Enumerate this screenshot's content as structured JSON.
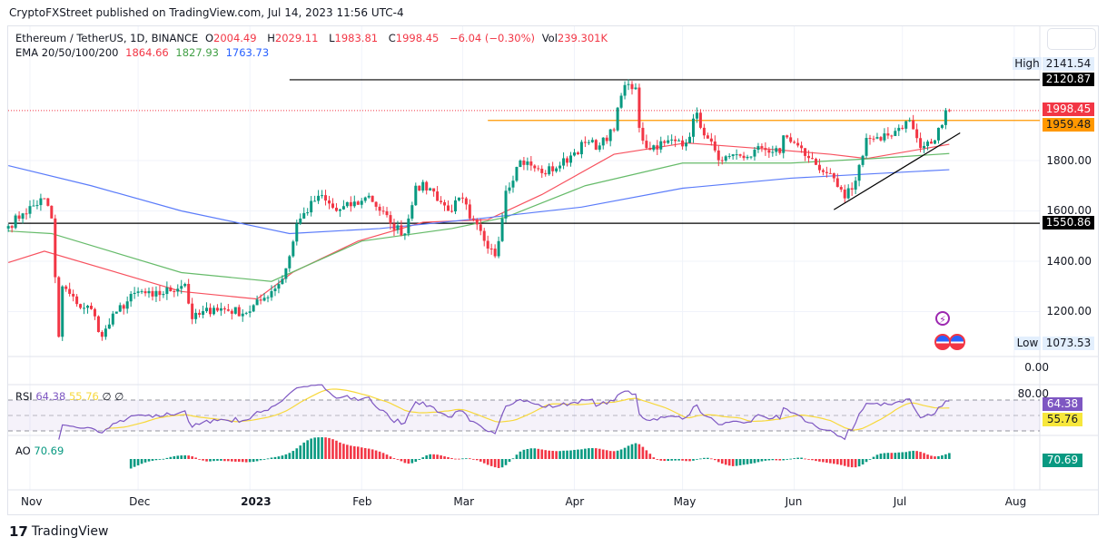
{
  "publisher_line": "CryptoFXStreet published on TradingView.com, Jul 14, 2023 11:56 UTC-4",
  "symbol": {
    "name": "Ethereum / TetherUS, 1D, BINANCE",
    "open_label": "O",
    "open": "2004.49",
    "high_label": "H",
    "high": "2029.11",
    "low_label": "L",
    "low": "1983.81",
    "close_label": "C",
    "close": "1998.45",
    "change": "−6.04 (−0.30%)",
    "vol_label": "Vol",
    "vol": "239.301K"
  },
  "ema_legend": {
    "label": "EMA 20/50/100/200",
    "v1": "1864.66",
    "v2": "1827.93",
    "v3": "1763.73"
  },
  "rsi_legend": {
    "label": "RSI",
    "v1": "64.38",
    "v2": "55.76",
    "v3": "∅",
    "v4": "∅"
  },
  "ao_legend": {
    "label": "AO",
    "v1": "70.69"
  },
  "footer": {
    "brand": "TradingView"
  },
  "colors": {
    "up": "#089981",
    "down": "#f23645",
    "ema_red": "#f7525f",
    "ema_green": "#66bb6a",
    "ema_blue": "#5b7cfa",
    "rsi": "#7e57c2",
    "rsi_ma": "#f7d83b",
    "orange": "#ff9800"
  },
  "chart_data": {
    "type": "candlestick",
    "price_axis": {
      "ticks": [
        "1800.00",
        "1600.00",
        "1400.00",
        "1200.00"
      ],
      "ylim": [
        1050,
        2160
      ]
    },
    "x_ticks": [
      {
        "label": "Nov",
        "date": "2022-11-01"
      },
      {
        "label": "Dec",
        "date": "2022-12-01"
      },
      {
        "label": "2023",
        "date": "2023-01-01"
      },
      {
        "label": "Feb",
        "date": "2023-02-01"
      },
      {
        "label": "Mar",
        "date": "2023-03-01"
      },
      {
        "label": "Apr",
        "date": "2023-04-01"
      },
      {
        "label": "May",
        "date": "2023-05-01"
      },
      {
        "label": "Jun",
        "date": "2023-06-01"
      },
      {
        "label": "Jul",
        "date": "2023-07-01"
      },
      {
        "label": "Aug",
        "date": "2023-08-01"
      }
    ],
    "close_path": [
      [
        "2022-10-26",
        1540
      ],
      [
        "2022-10-30",
        1590
      ],
      [
        "2022-11-05",
        1650
      ],
      [
        "2022-11-07",
        1570
      ],
      [
        "2022-11-09",
        1100
      ],
      [
        "2022-11-10",
        1300
      ],
      [
        "2022-11-14",
        1230
      ],
      [
        "2022-11-18",
        1210
      ],
      [
        "2022-11-21",
        1100
      ],
      [
        "2022-11-25",
        1200
      ],
      [
        "2022-12-01",
        1280
      ],
      [
        "2022-12-05",
        1260
      ],
      [
        "2022-12-14",
        1310
      ],
      [
        "2022-12-16",
        1170
      ],
      [
        "2022-12-22",
        1215
      ],
      [
        "2022-12-31",
        1195
      ],
      [
        "2023-01-05",
        1255
      ],
      [
        "2023-01-10",
        1330
      ],
      [
        "2023-01-12",
        1420
      ],
      [
        "2023-01-14",
        1550
      ],
      [
        "2023-01-20",
        1660
      ],
      [
        "2023-01-25",
        1600
      ],
      [
        "2023-02-01",
        1640
      ],
      [
        "2023-02-03",
        1660
      ],
      [
        "2023-02-09",
        1550
      ],
      [
        "2023-02-13",
        1510
      ],
      [
        "2023-02-16",
        1700
      ],
      [
        "2023-02-20",
        1690
      ],
      [
        "2023-02-25",
        1600
      ],
      [
        "2023-03-01",
        1650
      ],
      [
        "2023-03-03",
        1570
      ],
      [
        "2023-03-09",
        1450
      ],
      [
        "2023-03-10",
        1420
      ],
      [
        "2023-03-11",
        1480
      ],
      [
        "2023-03-13",
        1680
      ],
      [
        "2023-03-17",
        1800
      ],
      [
        "2023-03-20",
        1780
      ],
      [
        "2023-03-23",
        1750
      ],
      [
        "2023-03-28",
        1780
      ],
      [
        "2023-03-31",
        1820
      ],
      [
        "2023-04-04",
        1870
      ],
      [
        "2023-04-08",
        1860
      ],
      [
        "2023-04-12",
        1920
      ],
      [
        "2023-04-13",
        2010
      ],
      [
        "2023-04-15",
        2100
      ],
      [
        "2023-04-18",
        2090
      ],
      [
        "2023-04-19",
        1930
      ],
      [
        "2023-04-21",
        1850
      ],
      [
        "2023-04-26",
        1870
      ],
      [
        "2023-04-30",
        1880
      ],
      [
        "2023-05-02",
        1870
      ],
      [
        "2023-05-05",
        1990
      ],
      [
        "2023-05-07",
        1900
      ],
      [
        "2023-05-10",
        1840
      ],
      [
        "2023-05-12",
        1800
      ],
      [
        "2023-05-18",
        1810
      ],
      [
        "2023-05-23",
        1850
      ],
      [
        "2023-05-28",
        1830
      ],
      [
        "2023-05-29",
        1900
      ],
      [
        "2023-06-01",
        1870
      ],
      [
        "2023-06-05",
        1810
      ],
      [
        "2023-06-10",
        1750
      ],
      [
        "2023-06-15",
        1650
      ],
      [
        "2023-06-18",
        1720
      ],
      [
        "2023-06-21",
        1890
      ],
      [
        "2023-06-25",
        1880
      ],
      [
        "2023-06-30",
        1930
      ],
      [
        "2023-07-03",
        1960
      ],
      [
        "2023-07-06",
        1850
      ],
      [
        "2023-07-10",
        1880
      ],
      [
        "2023-07-13",
        2000
      ],
      [
        "2023-07-14",
        1998.45
      ]
    ],
    "ema_series": [
      {
        "name": "EMA 20",
        "color": "ema_red",
        "points": [
          [
            "2022-10-26",
            1395
          ],
          [
            "2022-11-05",
            1440
          ],
          [
            "2022-12-13",
            1280
          ],
          [
            "2023-01-03",
            1250
          ],
          [
            "2023-01-13",
            1357
          ],
          [
            "2023-01-31",
            1480
          ],
          [
            "2023-02-18",
            1555
          ],
          [
            "2023-03-08",
            1565
          ],
          [
            "2023-03-23",
            1665
          ],
          [
            "2023-04-12",
            1825
          ],
          [
            "2023-05-02",
            1870
          ],
          [
            "2023-05-27",
            1843
          ],
          [
            "2023-06-11",
            1825
          ],
          [
            "2023-06-21",
            1808
          ],
          [
            "2023-07-14",
            1864.66
          ]
        ]
      },
      {
        "name": "EMA 50",
        "color": "ema_green",
        "points": [
          [
            "2022-10-26",
            1520
          ],
          [
            "2022-11-07",
            1510
          ],
          [
            "2022-12-13",
            1355
          ],
          [
            "2023-01-07",
            1320
          ],
          [
            "2023-02-01",
            1480
          ],
          [
            "2023-02-26",
            1530
          ],
          [
            "2023-03-13",
            1575
          ],
          [
            "2023-04-04",
            1700
          ],
          [
            "2023-05-01",
            1790
          ],
          [
            "2023-05-31",
            1790
          ],
          [
            "2023-06-23",
            1808
          ],
          [
            "2023-07-14",
            1827.93
          ]
        ]
      },
      {
        "name": "EMA 100",
        "color": "ema_blue",
        "points": [
          [
            "2022-10-26",
            1780
          ],
          [
            "2022-11-18",
            1700
          ],
          [
            "2022-12-13",
            1600
          ],
          [
            "2023-01-12",
            1510
          ],
          [
            "2023-02-06",
            1530
          ],
          [
            "2023-03-06",
            1570
          ],
          [
            "2023-04-03",
            1615
          ],
          [
            "2023-05-01",
            1690
          ],
          [
            "2023-05-31",
            1730
          ],
          [
            "2023-07-14",
            1763.73
          ]
        ]
      }
    ],
    "levels": [
      {
        "value": 2120.87,
        "label": "2120.87",
        "color": "#000000",
        "from": "2023-01-12"
      },
      {
        "value": 1959.48,
        "label": "1959.48",
        "color": "#ff9800",
        "from": "2023-03-08"
      },
      {
        "value": 1550.86,
        "label": "1550.86",
        "color": "#000000",
        "from": "2022-10-26"
      }
    ],
    "last_price": {
      "value": 1998.45,
      "label": "1998.45"
    },
    "high_marker": {
      "label": "High",
      "value": "2141.54"
    },
    "low_marker": {
      "label": "Low",
      "value": "1073.53"
    },
    "trendline": [
      [
        "2023-06-12",
        1605
      ],
      [
        "2023-07-17",
        1910
      ]
    ],
    "event_icons": [
      "lightning-icon",
      "us-flag-icon",
      "us-flag-icon"
    ],
    "rsi": {
      "axis_labels": [
        "0.00",
        "80.00"
      ],
      "last": "64.38",
      "ma_last": "55.76",
      "bands": [
        70,
        50,
        30
      ]
    },
    "ao": {
      "last": "70.69"
    }
  }
}
